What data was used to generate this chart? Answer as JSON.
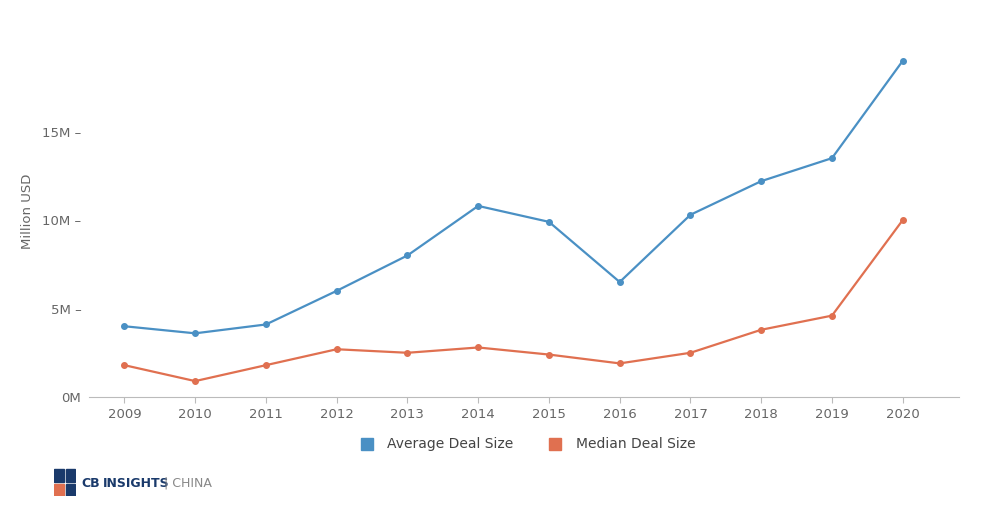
{
  "years": [
    2009,
    2010,
    2011,
    2012,
    2013,
    2014,
    2015,
    2016,
    2017,
    2018,
    2019,
    2020
  ],
  "avg_deal": [
    4.0,
    3.6,
    4.1,
    6.0,
    8.0,
    10.8,
    9.9,
    6.5,
    10.3,
    12.2,
    13.5,
    19.0
  ],
  "med_deal": [
    1.8,
    0.9,
    1.8,
    2.7,
    2.5,
    2.8,
    2.4,
    1.9,
    2.5,
    3.8,
    4.6,
    10.0
  ],
  "avg_color": "#4a90c4",
  "med_color": "#e07050",
  "ylabel": "Million USD",
  "yticks": [
    0,
    5,
    10,
    15
  ],
  "ytick_labels": [
    "0M",
    "5M –",
    "10M –",
    "15M –"
  ],
  "ylim": [
    0,
    21
  ],
  "xlim_left": 2008.5,
  "xlim_right": 2020.8,
  "legend_avg": "Average Deal Size",
  "legend_med": "Median Deal Size",
  "background_color": "#ffffff",
  "marker_size": 4,
  "line_width": 1.6
}
